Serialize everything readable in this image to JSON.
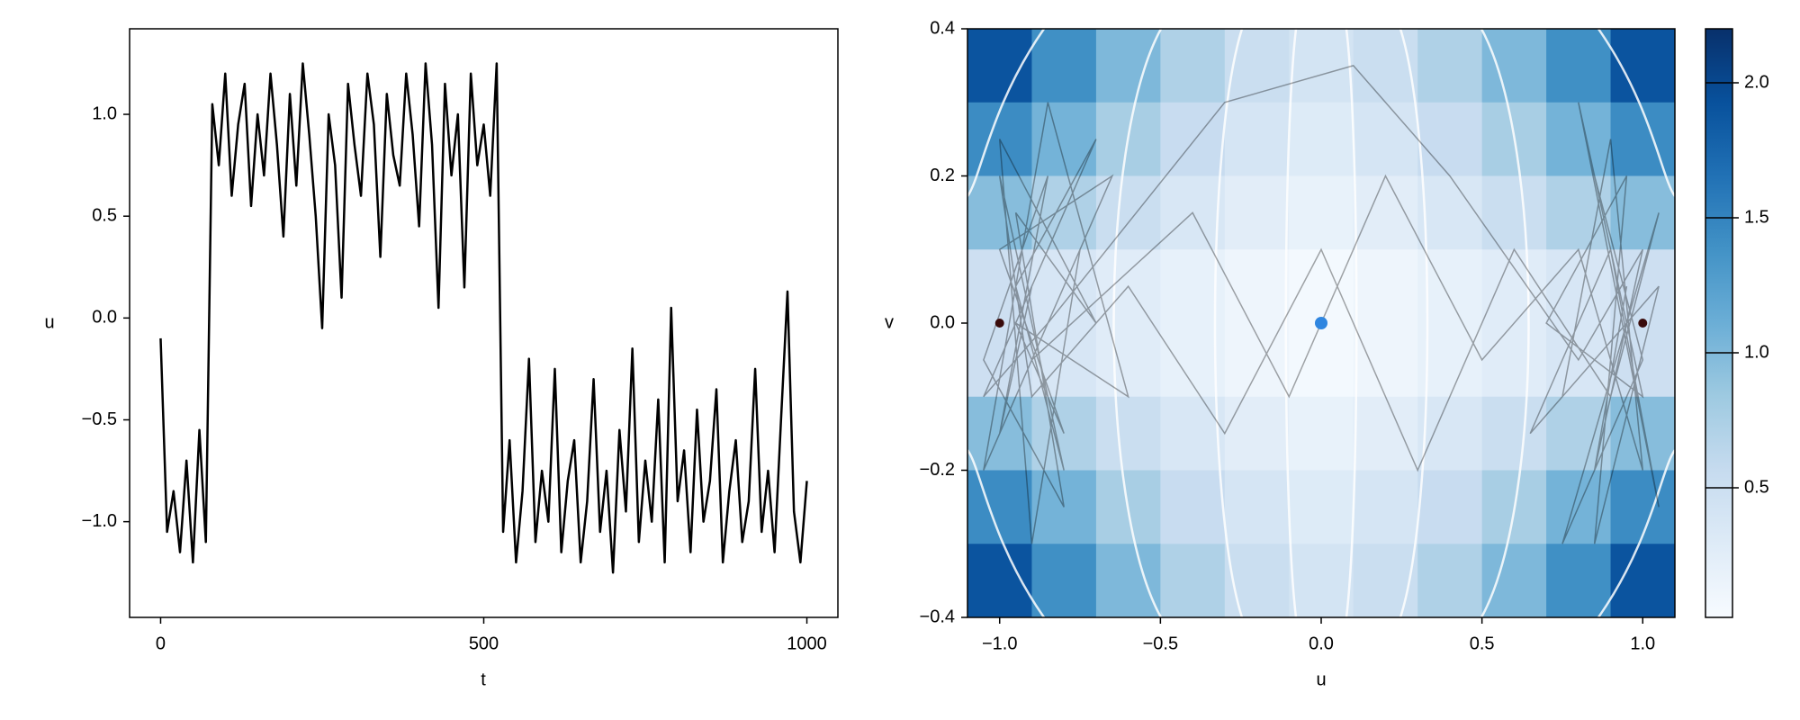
{
  "chart_data": [
    {
      "type": "line",
      "x_label": "t",
      "y_label": "u",
      "color": "#000000",
      "xlim": [
        -48,
        1048
      ],
      "ylim": [
        -1.47,
        1.42
      ],
      "xticks": [
        0,
        500,
        1000
      ],
      "yticks": [
        {
          "value": -1,
          "label": "−1.0"
        },
        {
          "value": -0.5,
          "label": "−0.5"
        },
        {
          "value": 0,
          "label": "0.0"
        },
        {
          "value": 0.5,
          "label": "0.5"
        },
        {
          "value": 1,
          "label": "1.0"
        }
      ],
      "x": [
        0,
        10,
        20,
        30,
        40,
        50,
        60,
        70,
        80,
        90,
        100,
        110,
        120,
        130,
        140,
        150,
        160,
        170,
        180,
        190,
        200,
        210,
        220,
        230,
        240,
        250,
        260,
        270,
        280,
        290,
        300,
        310,
        320,
        330,
        340,
        350,
        360,
        370,
        380,
        390,
        400,
        410,
        420,
        430,
        440,
        450,
        460,
        470,
        480,
        490,
        500,
        510,
        520,
        530,
        540,
        550,
        560,
        570,
        580,
        590,
        600,
        610,
        620,
        630,
        640,
        650,
        660,
        670,
        680,
        690,
        700,
        710,
        720,
        730,
        740,
        750,
        760,
        770,
        780,
        790,
        800,
        810,
        820,
        830,
        840,
        850,
        860,
        870,
        880,
        890,
        900,
        910,
        920,
        930,
        940,
        950,
        960,
        970,
        980,
        990,
        1000
      ],
      "values": [
        -0.1,
        -1.05,
        -0.85,
        -1.15,
        -0.7,
        -1.2,
        -0.55,
        -1.1,
        1.05,
        0.75,
        1.2,
        0.6,
        0.95,
        1.15,
        0.55,
        1.0,
        0.7,
        1.2,
        0.85,
        0.4,
        1.1,
        0.65,
        1.25,
        0.9,
        0.5,
        -0.05,
        1.0,
        0.75,
        0.1,
        1.15,
        0.85,
        0.6,
        1.2,
        0.95,
        0.3,
        1.1,
        0.8,
        0.65,
        1.2,
        0.9,
        0.45,
        1.25,
        0.85,
        0.05,
        1.15,
        0.7,
        1.0,
        0.15,
        1.2,
        0.75,
        0.95,
        0.6,
        1.25,
        -1.05,
        -0.6,
        -1.2,
        -0.85,
        -0.2,
        -1.1,
        -0.75,
        -1.0,
        -0.25,
        -1.15,
        -0.8,
        -0.6,
        -1.2,
        -0.9,
        -0.3,
        -1.05,
        -0.75,
        -1.25,
        -0.55,
        -0.95,
        -0.15,
        -1.1,
        -0.7,
        -1.0,
        -0.4,
        -1.2,
        0.05,
        -0.9,
        -0.65,
        -1.15,
        -0.45,
        -1.0,
        -0.8,
        -0.35,
        -1.2,
        -0.85,
        -0.6,
        -1.1,
        -0.9,
        -0.25,
        -1.05,
        -0.75,
        -1.15,
        -0.5,
        0.13,
        -0.95,
        -1.2,
        -0.8
      ]
    },
    {
      "type": "heatmap",
      "x_label": "u",
      "y_label": "v",
      "xlim": [
        -1.1,
        1.1
      ],
      "ylim": [
        -0.4,
        0.4
      ],
      "xticks": [
        {
          "value": -1,
          "label": "−1.0"
        },
        {
          "value": -0.5,
          "label": "−0.5"
        },
        {
          "value": 0,
          "label": "0.0"
        },
        {
          "value": 0.5,
          "label": "0.5"
        },
        {
          "value": 1,
          "label": "1.0"
        }
      ],
      "yticks": [
        {
          "value": -0.4,
          "label": "−0.4"
        },
        {
          "value": -0.2,
          "label": "−0.2"
        },
        {
          "value": 0,
          "label": "0.0"
        },
        {
          "value": 0.2,
          "label": "0.2"
        },
        {
          "value": 0.4,
          "label": "0.4"
        }
      ],
      "x_centers": [
        -1.0,
        -0.8,
        -0.6,
        -0.4,
        -0.2,
        0,
        0.2,
        0.4,
        0.6,
        0.8,
        1.0
      ],
      "y_centers": [
        0.35,
        0.25,
        0.15,
        0.05,
        -0.05,
        -0.15,
        -0.25,
        -0.35
      ],
      "z": [
        [
          1.9,
          1.4,
          1.01,
          0.72,
          0.52,
          0.42,
          0.52,
          0.72,
          1.01,
          1.4,
          1.9
        ],
        [
          1.43,
          1.06,
          0.77,
          0.54,
          0.39,
          0.3,
          0.39,
          0.54,
          0.77,
          1.06,
          1.43
        ],
        [
          0.96,
          0.72,
          0.52,
          0.36,
          0.25,
          0.18,
          0.25,
          0.36,
          0.52,
          0.72,
          0.96
        ],
        [
          0.49,
          0.37,
          0.27,
          0.19,
          0.12,
          0.06,
          0.12,
          0.19,
          0.27,
          0.37,
          0.49
        ],
        [
          0.49,
          0.37,
          0.27,
          0.19,
          0.12,
          0.06,
          0.12,
          0.19,
          0.27,
          0.37,
          0.49
        ],
        [
          0.96,
          0.72,
          0.52,
          0.36,
          0.25,
          0.18,
          0.25,
          0.36,
          0.52,
          0.72,
          0.96
        ],
        [
          1.43,
          1.06,
          0.77,
          0.54,
          0.39,
          0.3,
          0.39,
          0.54,
          0.77,
          1.06,
          1.43
        ],
        [
          1.9,
          1.4,
          1.01,
          0.72,
          0.52,
          0.42,
          0.52,
          0.72,
          1.01,
          1.4,
          1.9
        ]
      ],
      "colormap": [
        "#f7fbff",
        "#deebf7",
        "#c6dbef",
        "#9ecae1",
        "#6baed6",
        "#4292c6",
        "#2171b5",
        "#08519c",
        "#08306b"
      ],
      "colorbar": {
        "clim": [
          0.02,
          2.2
        ],
        "ticks": [
          {
            "value": 0.5,
            "label": "0.5"
          },
          {
            "value": 1,
            "label": "1.0"
          },
          {
            "value": 1.5,
            "label": "1.5"
          },
          {
            "value": 2,
            "label": "2.0"
          }
        ]
      },
      "trajectory": {
        "color": "#000000",
        "x": [
          -0.9,
          -1.0,
          -0.85,
          -1.05,
          -0.8,
          -0.95,
          -0.7,
          -1.0,
          -0.9,
          -0.75,
          -1.05,
          -0.85,
          -0.6,
          -0.95,
          -0.8,
          -1.0,
          -0.65,
          -0.9,
          -0.4,
          -0.1,
          0.2,
          0.5,
          0.8,
          1.0,
          0.9,
          0.75,
          1.05,
          0.85,
          0.95,
          0.7,
          1.0,
          0.8,
          1.05,
          0.9,
          0.65,
          0.95,
          0.85,
          1.0,
          0.75,
          1.05,
          0.9,
          0.6,
          0.3,
          0.0,
          -0.3,
          -0.6,
          -0.9,
          -1.0,
          -0.8,
          -0.95,
          -0.7,
          -1.05,
          -0.85,
          -0.3,
          0.1,
          0.4,
          0.8,
          1.0,
          0.85,
          0.95
        ],
        "y": [
          0.05,
          -0.15,
          0.2,
          -0.05,
          -0.25,
          0.15,
          0.0,
          0.25,
          -0.3,
          0.1,
          -0.2,
          0.3,
          -0.1,
          0.0,
          -0.15,
          0.1,
          0.2,
          -0.05,
          0.15,
          -0.1,
          0.2,
          -0.05,
          0.1,
          -0.2,
          0.25,
          -0.1,
          0.05,
          -0.3,
          0.2,
          0.0,
          -0.1,
          0.3,
          -0.25,
          0.1,
          -0.15,
          0.0,
          0.2,
          -0.05,
          -0.3,
          0.15,
          -0.1,
          0.1,
          -0.2,
          0.1,
          -0.15,
          0.05,
          -0.1,
          0.2,
          -0.2,
          0.05,
          0.25,
          -0.1,
          0.0,
          0.3,
          0.35,
          0.2,
          -0.05,
          0.1,
          -0.2,
          0.05
        ]
      },
      "fixed_points": {
        "x": [
          -1,
          0,
          1
        ],
        "y": [
          0,
          0,
          0
        ],
        "colors": [
          "#3a0b0b",
          "#2f86e0",
          "#3a0b0b"
        ]
      }
    }
  ]
}
